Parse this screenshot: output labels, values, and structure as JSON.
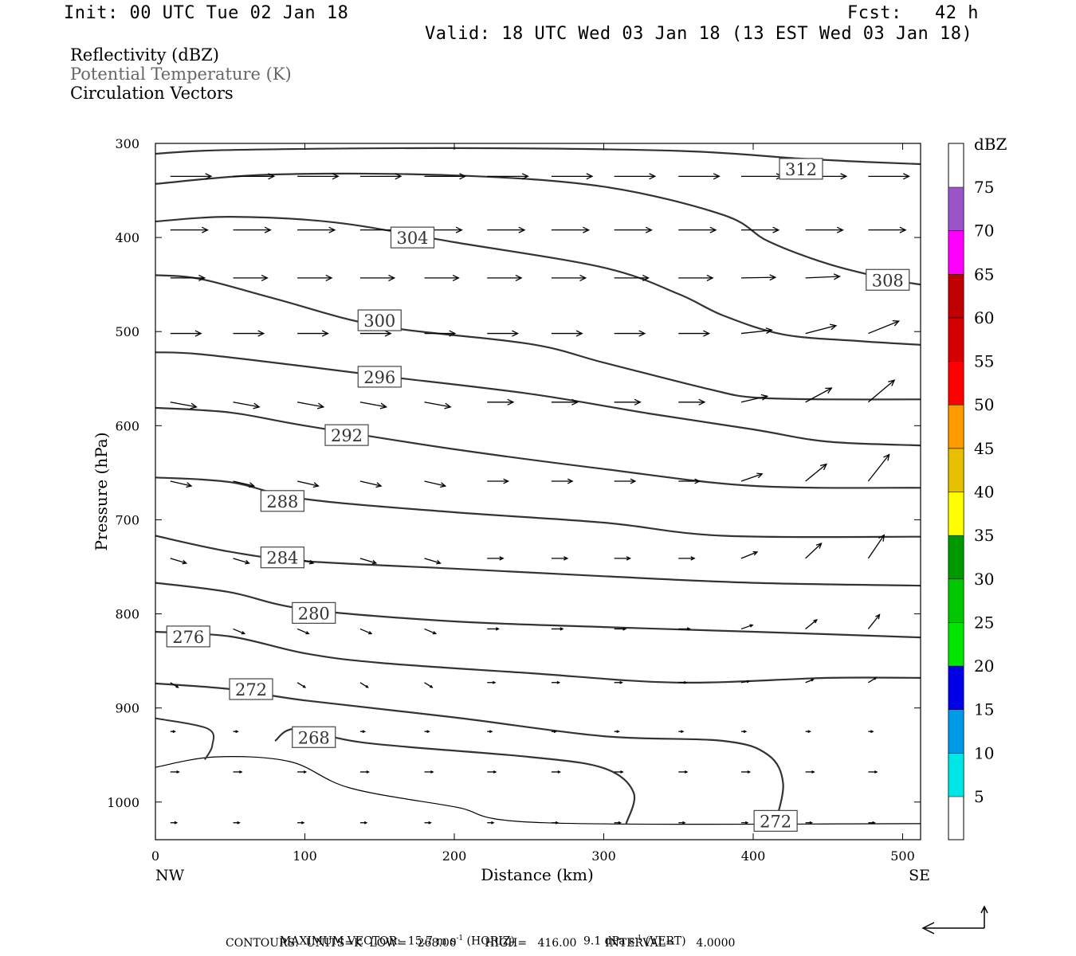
{
  "header": {
    "init": "Init: 00 UTC Tue 02 Jan 18",
    "fcst": "Fcst:   42 h",
    "valid": "Valid: 18 UTC Wed 03 Jan 18 (13 EST Wed 03 Jan 18)"
  },
  "fields": [
    {
      "label": "Reflectivity (dBZ)",
      "color": "#000000"
    },
    {
      "label": "Potential Temperature (K)",
      "color": "#666666"
    },
    {
      "label": "Circulation Vectors",
      "color": "#000000"
    }
  ],
  "chart_data": {
    "type": "cross-section",
    "xlabel": "Distance (km)",
    "ylabel": "Pressure (hPa)",
    "x_ticks": [
      0,
      100,
      200,
      300,
      400,
      500
    ],
    "y_ticks": [
      300,
      400,
      500,
      600,
      700,
      800,
      900,
      1000
    ],
    "xlim": [
      0,
      512
    ],
    "ylim": [
      300,
      1040
    ],
    "y_inverted": true,
    "x_end_labels": {
      "left": "NW",
      "right": "SE"
    },
    "colorbar": {
      "title": "dBZ",
      "labels": [
        5,
        10,
        15,
        20,
        25,
        30,
        35,
        40,
        45,
        50,
        55,
        60,
        65,
        70,
        75
      ],
      "colors": [
        "#00E6E6",
        "#0099E6",
        "#0000E6",
        "#0000CC",
        "#00E600",
        "#00C800",
        "#009900",
        "#007F00",
        "#FFFF00",
        "#E6BF00",
        "#FF9900",
        "#FF0000",
        "#D70000",
        "#C00000",
        "#FF00FF",
        "#9955C9"
      ]
    },
    "theta_contours": [
      {
        "value": 312,
        "label": "312",
        "label_at": [
          432,
          327
        ],
        "points": [
          [
            0,
            311
          ],
          [
            50,
            307
          ],
          [
            200,
            305
          ],
          [
            350,
            308
          ],
          [
            430,
            316
          ],
          [
            480,
            320
          ],
          [
            512,
            322
          ]
        ]
      },
      {
        "value": 308,
        "label": "308",
        "label_at": [
          490,
          445
        ],
        "points": [
          [
            0,
            343
          ],
          [
            80,
            333
          ],
          [
            200,
            334
          ],
          [
            300,
            346
          ],
          [
            380,
            376
          ],
          [
            410,
            404
          ],
          [
            450,
            428
          ],
          [
            490,
            444
          ],
          [
            512,
            450
          ]
        ]
      },
      {
        "value": 304,
        "label": "304",
        "label_at": [
          172,
          400
        ],
        "points": [
          [
            0,
            383
          ],
          [
            50,
            378
          ],
          [
            120,
            384
          ],
          [
            200,
            405
          ],
          [
            300,
            432
          ],
          [
            350,
            460
          ],
          [
            380,
            483
          ],
          [
            420,
            503
          ],
          [
            470,
            510
          ],
          [
            512,
            514
          ]
        ]
      },
      {
        "value": 300,
        "label": "300",
        "label_at": [
          150,
          488
        ],
        "points": [
          [
            0,
            440
          ],
          [
            30,
            444
          ],
          [
            80,
            465
          ],
          [
            150,
            494
          ],
          [
            250,
            513
          ],
          [
            300,
            533
          ],
          [
            370,
            561
          ],
          [
            400,
            570
          ],
          [
            450,
            572
          ],
          [
            512,
            572
          ]
        ]
      },
      {
        "value": 296,
        "label": "296",
        "label_at": [
          150,
          548
        ],
        "points": [
          [
            0,
            522
          ],
          [
            30,
            524
          ],
          [
            100,
            537
          ],
          [
            150,
            547
          ],
          [
            250,
            566
          ],
          [
            330,
            587
          ],
          [
            400,
            604
          ],
          [
            450,
            617
          ],
          [
            512,
            621
          ]
        ]
      },
      {
        "value": 292,
        "label": "292",
        "label_at": [
          128,
          610
        ],
        "points": [
          [
            0,
            581
          ],
          [
            50,
            586
          ],
          [
            100,
            600
          ],
          [
            200,
            625
          ],
          [
            300,
            646
          ],
          [
            400,
            664
          ],
          [
            512,
            666
          ]
        ]
      },
      {
        "value": 288,
        "label": "288",
        "label_at": [
          85,
          680
        ],
        "points": [
          [
            0,
            655
          ],
          [
            50,
            660
          ],
          [
            100,
            678
          ],
          [
            200,
            692
          ],
          [
            300,
            703
          ],
          [
            380,
            717
          ],
          [
            512,
            718
          ]
        ]
      },
      {
        "value": 284,
        "label": "284",
        "label_at": [
          85,
          740
        ],
        "points": [
          [
            0,
            717
          ],
          [
            50,
            734
          ],
          [
            100,
            744
          ],
          [
            200,
            752
          ],
          [
            300,
            760
          ],
          [
            400,
            767
          ],
          [
            512,
            770
          ]
        ]
      },
      {
        "value": 280,
        "label": "280",
        "label_at": [
          106,
          799
        ],
        "points": [
          [
            0,
            767
          ],
          [
            50,
            777
          ],
          [
            100,
            795
          ],
          [
            200,
            808
          ],
          [
            300,
            814
          ],
          [
            400,
            819
          ],
          [
            512,
            825
          ]
        ]
      },
      {
        "value": 276,
        "label": "276",
        "label_at": [
          22,
          824
        ],
        "points": [
          [
            0,
            819
          ],
          [
            50,
            824
          ],
          [
            100,
            842
          ],
          [
            150,
            852
          ],
          [
            250,
            863
          ],
          [
            350,
            873
          ],
          [
            450,
            868
          ],
          [
            512,
            868
          ]
        ]
      },
      {
        "value": 272,
        "label": "272",
        "label_at": [
          64,
          880
        ],
        "points": [
          [
            0,
            874
          ],
          [
            50,
            880
          ],
          [
            100,
            892
          ],
          [
            200,
            910
          ],
          [
            300,
            930
          ],
          [
            380,
            935
          ],
          [
            410,
            950
          ],
          [
            420,
            980
          ],
          [
            415,
            1022
          ]
        ]
      },
      {
        "value": 268,
        "label": "268",
        "label_at": [
          106,
          931
        ],
        "points": [
          [
            80,
            935
          ],
          [
            95,
            922
          ],
          [
            140,
            937
          ],
          [
            250,
            952
          ],
          [
            300,
            964
          ],
          [
            320,
            990
          ],
          [
            315,
            1023
          ]
        ]
      }
    ],
    "contour_labels_extra": [
      {
        "label": "272",
        "label_at": [
          415,
          1020
        ]
      }
    ]
  },
  "footer": {
    "line1_a": "MAXIMUM VECTOR:  15.7 m s",
    "line1_sup1": "-1",
    "line1_b": " (HORIZ)",
    "line1_c": "9.1 dPa s",
    "line1_sup2": "-1",
    "line1_d": " (VERT)",
    "line2": "CONTOURS:  UNITS=K  LOW=   268.00        HIGH=   416.00        INTERVAL=      4.0000"
  }
}
